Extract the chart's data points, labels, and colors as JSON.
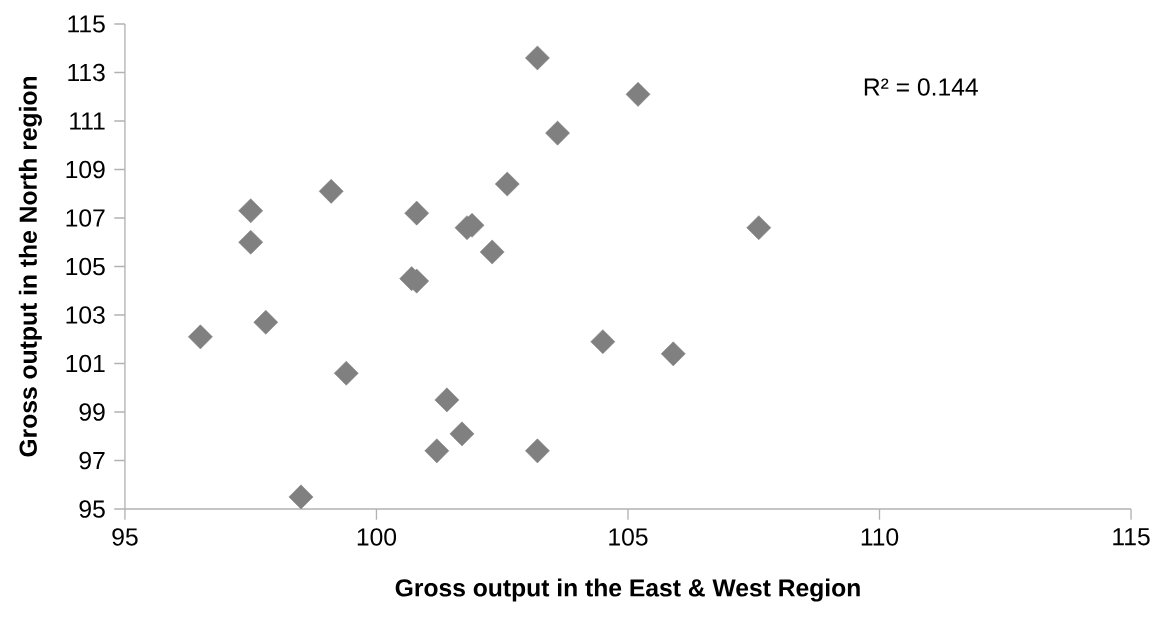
{
  "chart_data": {
    "type": "scatter",
    "xlabel": "Gross output in the East & West Region",
    "ylabel": "Gross output in the North region",
    "annotations": [
      "R² = 0.144"
    ],
    "series": [
      {
        "color": "#808080",
        "x": [
          96.5,
          97.5,
          97.5,
          97.8,
          99.1,
          99.4,
          98.5,
          100.8,
          100.7,
          100.8,
          101.4,
          101.2,
          103.2,
          105.2,
          103.6,
          102.6,
          101.8,
          101.9,
          102.3,
          107.6,
          104.5,
          105.9,
          101.7,
          103.2
        ],
        "values": [
          102.1,
          107.3,
          106.0,
          102.7,
          108.1,
          100.6,
          95.5,
          107.2,
          104.5,
          104.4,
          99.5,
          97.4,
          113.6,
          112.1,
          110.5,
          108.4,
          106.6,
          106.7,
          105.6,
          106.6,
          101.9,
          101.4,
          98.1,
          97.4
        ]
      }
    ],
    "xlim": [
      95,
      115
    ],
    "xticks": [
      95,
      100,
      105,
      110,
      115
    ],
    "ylim": [
      95,
      115
    ],
    "yticks": [
      95,
      97,
      99,
      101,
      103,
      105,
      107,
      109,
      111,
      113,
      115
    ],
    "grid": false,
    "marker": "diamond"
  }
}
